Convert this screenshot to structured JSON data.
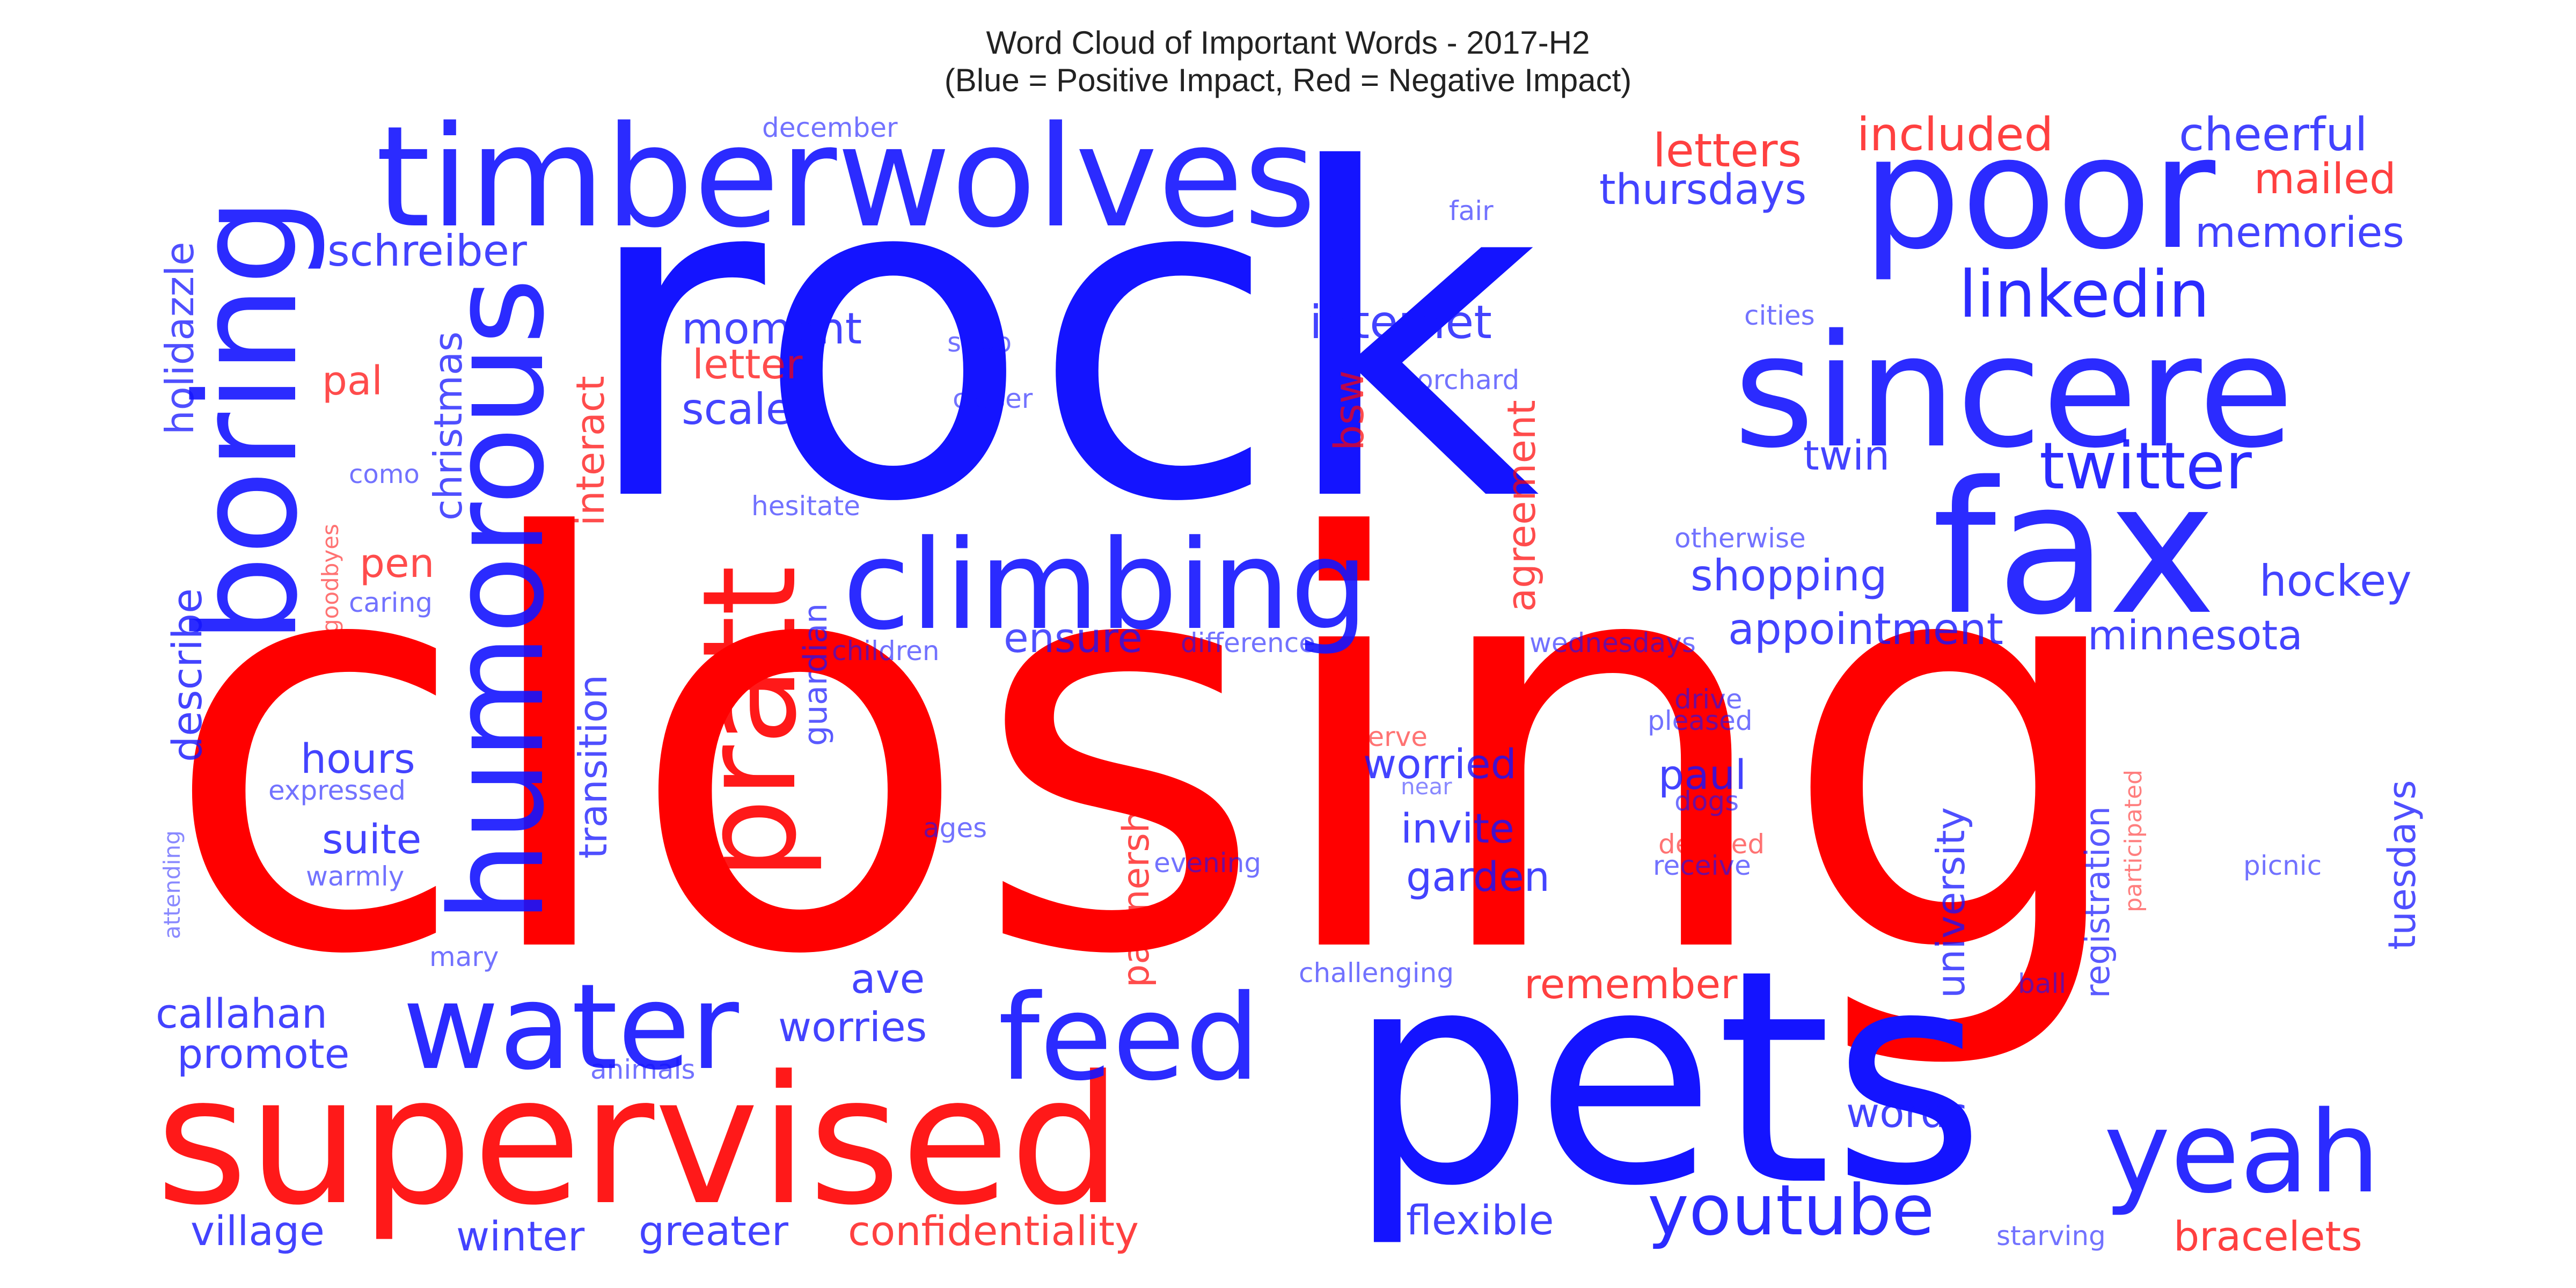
{
  "chart_data": {
    "type": "wordcloud",
    "title": "Word Cloud of Important Words - 2017-H2",
    "subtitle": "(Blue = Positive Impact, Red = Negative Impact)",
    "colors": {
      "positive": "#1414ff",
      "negative": "#ff0000"
    },
    "words": [
      {
        "text": "closing",
        "impact": "negative",
        "weight": 1.0
      },
      {
        "text": "rock",
        "impact": "positive",
        "weight": 0.95
      },
      {
        "text": "pets",
        "impact": "positive",
        "weight": 0.6
      },
      {
        "text": "supervised",
        "impact": "negative",
        "weight": 0.36
      },
      {
        "text": "timberwolves",
        "impact": "positive",
        "weight": 0.3
      },
      {
        "text": "poor",
        "impact": "positive",
        "weight": 0.3
      },
      {
        "text": "sincere",
        "impact": "positive",
        "weight": 0.3
      },
      {
        "text": "fax",
        "impact": "positive",
        "weight": 0.36
      },
      {
        "text": "boring",
        "impact": "positive",
        "weight": 0.27
      },
      {
        "text": "humorous",
        "impact": "positive",
        "weight": 0.24
      },
      {
        "text": "pratt",
        "impact": "negative",
        "weight": 0.27
      },
      {
        "text": "climbing",
        "impact": "positive",
        "weight": 0.24
      },
      {
        "text": "water",
        "impact": "positive",
        "weight": 0.22
      },
      {
        "text": "feed",
        "impact": "positive",
        "weight": 0.22
      },
      {
        "text": "yeah",
        "impact": "positive",
        "weight": 0.22
      },
      {
        "text": "twitter",
        "impact": "positive",
        "weight": 0.13
      },
      {
        "text": "linkedin",
        "impact": "positive",
        "weight": 0.13
      },
      {
        "text": "youtube",
        "impact": "positive",
        "weight": 0.13
      },
      {
        "text": "cheerful",
        "impact": "positive",
        "weight": 0.09
      },
      {
        "text": "included",
        "impact": "negative",
        "weight": 0.09
      },
      {
        "text": "letters",
        "impact": "negative",
        "weight": 0.09
      },
      {
        "text": "thursdays",
        "impact": "positive",
        "weight": 0.09
      },
      {
        "text": "mailed",
        "impact": "negative",
        "weight": 0.09
      },
      {
        "text": "memories",
        "impact": "positive",
        "weight": 0.09
      },
      {
        "text": "schreiber",
        "impact": "positive",
        "weight": 0.09
      },
      {
        "text": "holidazzle",
        "impact": "positive",
        "weight": 0.08
      },
      {
        "text": "december",
        "impact": "positive",
        "weight": 0.05
      },
      {
        "text": "fair",
        "impact": "positive",
        "weight": 0.05
      },
      {
        "text": "internet",
        "impact": "positive",
        "weight": 0.09
      },
      {
        "text": "moment",
        "impact": "positive",
        "weight": 0.09
      },
      {
        "text": "letter",
        "impact": "negative",
        "weight": 0.08
      },
      {
        "text": "scale",
        "impact": "positive",
        "weight": 0.09
      },
      {
        "text": "pal",
        "impact": "negative",
        "weight": 0.08
      },
      {
        "text": "christmas",
        "impact": "positive",
        "weight": 0.08
      },
      {
        "text": "interact",
        "impact": "negative",
        "weight": 0.08
      },
      {
        "text": "shop",
        "impact": "positive",
        "weight": 0.05
      },
      {
        "text": "closer",
        "impact": "positive",
        "weight": 0.05
      },
      {
        "text": "cities",
        "impact": "positive",
        "weight": 0.05
      },
      {
        "text": "bsw",
        "impact": "negative",
        "weight": 0.07
      },
      {
        "text": "orchard",
        "impact": "positive",
        "weight": 0.05
      },
      {
        "text": "agreement",
        "impact": "negative",
        "weight": 0.08
      },
      {
        "text": "twin",
        "impact": "positive",
        "weight": 0.09
      },
      {
        "text": "otherwise",
        "impact": "positive",
        "weight": 0.05
      },
      {
        "text": "hockey",
        "impact": "positive",
        "weight": 0.09
      },
      {
        "text": "shopping",
        "impact": "positive",
        "weight": 0.09
      },
      {
        "text": "appointment",
        "impact": "positive",
        "weight": 0.09
      },
      {
        "text": "minnesota",
        "impact": "positive",
        "weight": 0.09
      },
      {
        "text": "goodbyes",
        "impact": "negative",
        "weight": 0.04
      },
      {
        "text": "como",
        "impact": "positive",
        "weight": 0.05
      },
      {
        "text": "pen",
        "impact": "negative",
        "weight": 0.08
      },
      {
        "text": "caring",
        "impact": "positive",
        "weight": 0.05
      },
      {
        "text": "hesitate",
        "impact": "positive",
        "weight": 0.05
      },
      {
        "text": "describe",
        "impact": "positive",
        "weight": 0.09
      },
      {
        "text": "transition",
        "impact": "positive",
        "weight": 0.08
      },
      {
        "text": "guardian",
        "impact": "positive",
        "weight": 0.07
      },
      {
        "text": "children",
        "impact": "positive",
        "weight": 0.05
      },
      {
        "text": "ensure",
        "impact": "positive",
        "weight": 0.08
      },
      {
        "text": "difference",
        "impact": "positive",
        "weight": 0.05
      },
      {
        "text": "wednesdays",
        "impact": "positive",
        "weight": 0.05
      },
      {
        "text": "partnership",
        "impact": "negative",
        "weight": 0.08
      },
      {
        "text": "observe",
        "impact": "negative",
        "weight": 0.05
      },
      {
        "text": "drive",
        "impact": "positive",
        "weight": 0.05
      },
      {
        "text": "pleased",
        "impact": "positive",
        "weight": 0.05
      },
      {
        "text": "registration",
        "impact": "positive",
        "weight": 0.08
      },
      {
        "text": "participated",
        "impact": "negative",
        "weight": 0.04
      },
      {
        "text": "tuesdays",
        "impact": "positive",
        "weight": 0.08
      },
      {
        "text": "university",
        "impact": "positive",
        "weight": 0.09
      },
      {
        "text": "hours",
        "impact": "positive",
        "weight": 0.09
      },
      {
        "text": "expressed",
        "impact": "positive",
        "weight": 0.05
      },
      {
        "text": "suite",
        "impact": "positive",
        "weight": 0.09
      },
      {
        "text": "warmly",
        "impact": "positive",
        "weight": 0.05
      },
      {
        "text": "attending",
        "impact": "positive",
        "weight": 0.04
      },
      {
        "text": "ages",
        "impact": "positive",
        "weight": 0.05
      },
      {
        "text": "worried",
        "impact": "positive",
        "weight": 0.09
      },
      {
        "text": "invite",
        "impact": "positive",
        "weight": 0.09
      },
      {
        "text": "garden",
        "impact": "positive",
        "weight": 0.09
      },
      {
        "text": "near",
        "impact": "positive",
        "weight": 0.04
      },
      {
        "text": "evening",
        "impact": "positive",
        "weight": 0.05
      },
      {
        "text": "paul",
        "impact": "positive",
        "weight": 0.09
      },
      {
        "text": "dogs",
        "impact": "positive",
        "weight": 0.05
      },
      {
        "text": "decided",
        "impact": "negative",
        "weight": 0.05
      },
      {
        "text": "receive",
        "impact": "positive",
        "weight": 0.05
      },
      {
        "text": "picnic",
        "impact": "positive",
        "weight": 0.05
      },
      {
        "text": "mary",
        "impact": "positive",
        "weight": 0.05
      },
      {
        "text": "callahan",
        "impact": "positive",
        "weight": 0.09
      },
      {
        "text": "promote",
        "impact": "positive",
        "weight": 0.09
      },
      {
        "text": "ave",
        "impact": "positive",
        "weight": 0.09
      },
      {
        "text": "worries",
        "impact": "positive",
        "weight": 0.09
      },
      {
        "text": "animals",
        "impact": "positive",
        "weight": 0.05
      },
      {
        "text": "challenging",
        "impact": "positive",
        "weight": 0.05
      },
      {
        "text": "remember",
        "impact": "negative",
        "weight": 0.09
      },
      {
        "text": "ball",
        "impact": "positive",
        "weight": 0.05
      },
      {
        "text": "words",
        "impact": "positive",
        "weight": 0.09
      },
      {
        "text": "village",
        "impact": "positive",
        "weight": 0.09
      },
      {
        "text": "winter",
        "impact": "positive",
        "weight": 0.09
      },
      {
        "text": "greater",
        "impact": "positive",
        "weight": 0.09
      },
      {
        "text": "confidentiality",
        "impact": "negative",
        "weight": 0.09
      },
      {
        "text": "flexible",
        "impact": "positive",
        "weight": 0.09
      },
      {
        "text": "starving",
        "impact": "positive",
        "weight": 0.05
      },
      {
        "text": "bracelets",
        "impact": "negative",
        "weight": 0.09
      }
    ]
  }
}
